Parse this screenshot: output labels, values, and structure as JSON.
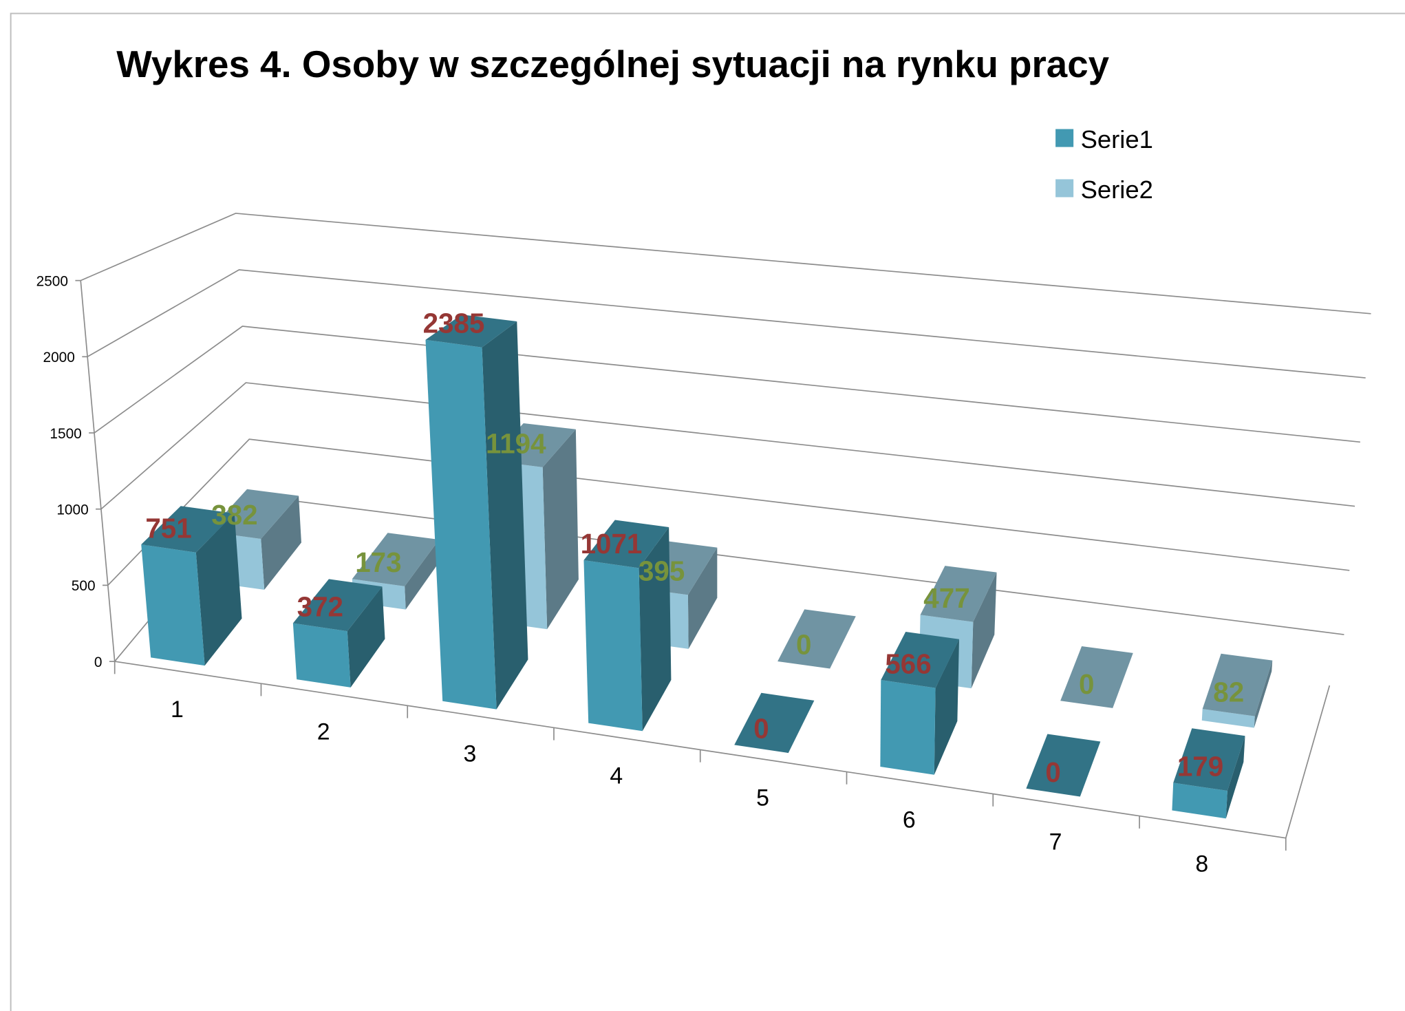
{
  "chart_data": {
    "type": "bar3d",
    "title": "Wykres 4. Osoby w szczególnej sytuacji na rynku pracy",
    "categories": [
      "1",
      "2",
      "3",
      "4",
      "5",
      "6",
      "7",
      "8"
    ],
    "series": [
      {
        "name": "Serie1",
        "color": "#4299b2",
        "label_color": "#953735",
        "values": [
          751,
          372,
          2385,
          1071,
          0,
          566,
          0,
          179
        ]
      },
      {
        "name": "Serie2",
        "color": "#95c5d9",
        "label_color": "#77933c",
        "values": [
          382,
          173,
          1194,
          395,
          0,
          477,
          0,
          82
        ]
      }
    ],
    "ylim": [
      0,
      2500
    ],
    "yticks": [
      0,
      500,
      1000,
      1500,
      2000,
      2500
    ],
    "grid": true,
    "legend": "top-right"
  }
}
